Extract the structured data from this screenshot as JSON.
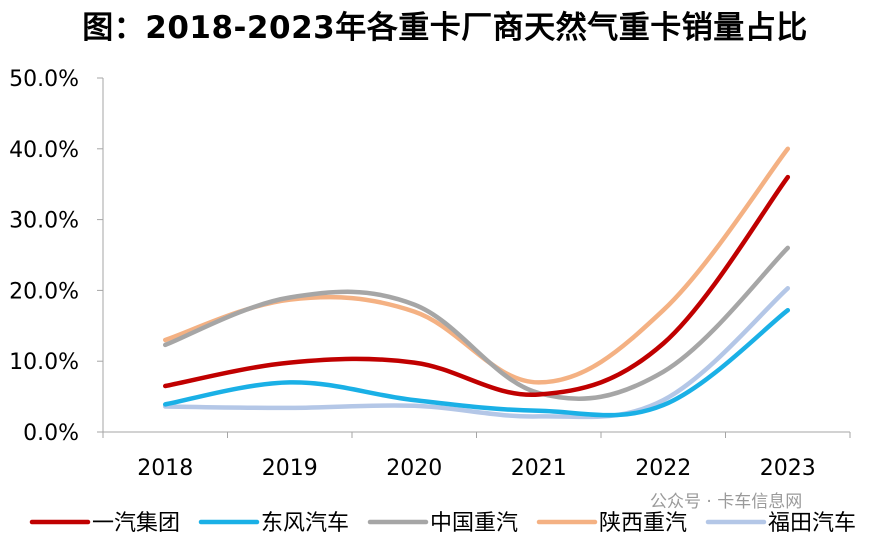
{
  "chart_data": {
    "type": "line",
    "title": "图：2018-2023年各重卡厂商天然气重卡销量占比",
    "categories": [
      "2018",
      "2019",
      "2020",
      "2021",
      "2022",
      "2023"
    ],
    "ylim": [
      0,
      50
    ],
    "yticks": [
      "0.0%",
      "10.0%",
      "20.0%",
      "30.0%",
      "40.0%",
      "50.0%"
    ],
    "ytick_values": [
      0,
      10,
      20,
      30,
      40,
      50
    ],
    "grid": false,
    "legend_position": "bottom",
    "series": [
      {
        "name": "一汽集团",
        "color": "#c00000",
        "values": [
          6.5,
          9.8,
          9.8,
          5.3,
          12.5,
          36.0
        ]
      },
      {
        "name": "东风汽车",
        "color": "#1ab0e6",
        "values": [
          3.9,
          7.0,
          4.5,
          3.0,
          3.8,
          17.2
        ]
      },
      {
        "name": "中国重汽",
        "color": "#a6a6a6",
        "values": [
          12.3,
          19.0,
          18.0,
          5.5,
          8.5,
          26.0
        ]
      },
      {
        "name": "陕西重汽",
        "color": "#f4b183",
        "values": [
          13.0,
          18.7,
          17.0,
          7.0,
          17.2,
          40.0
        ]
      },
      {
        "name": "福田汽车",
        "color": "#b4c7e7",
        "values": [
          3.6,
          3.4,
          3.7,
          2.2,
          4.5,
          20.3
        ]
      }
    ]
  },
  "watermark": "公众号 · 卡车信息网"
}
